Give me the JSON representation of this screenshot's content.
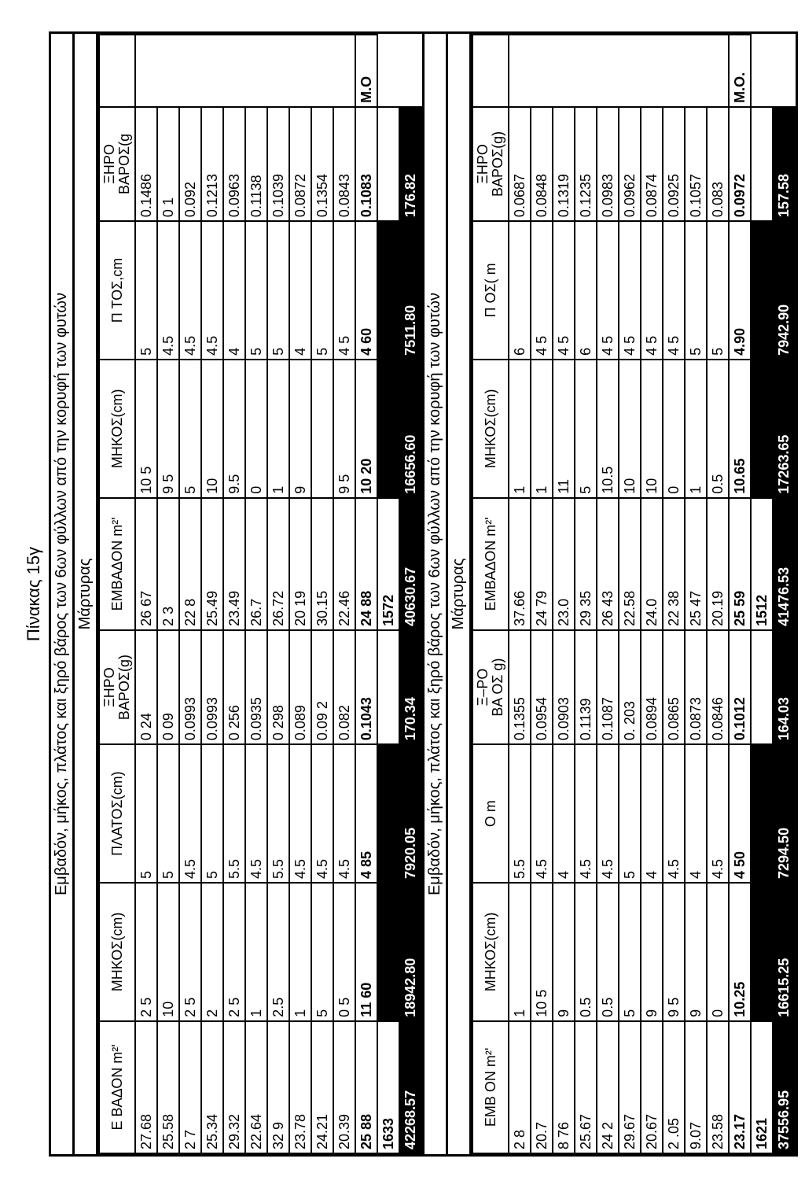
{
  "caption": "Πίνακας 15γ",
  "mainTitle": "Εμβαδόν, μήκος, πλάτος και ξηρό βάρος των 6ων φύλλων από την κορυφή των φυτών",
  "subTitle": "Μάρτυρας",
  "midTitle": "Εμβαδόν, μήκος, πλάτος και ξηρό βάρος των 6ων φύλλων από την κορυφή των φυτών",
  "midSubTitle": "Μάρτυρας",
  "noteLabel": "Μ.Ο",
  "noteLabel2": "Μ.Ο.",
  "headers1": {
    "c1": "Ε ΒΑΔΟΝ m²'",
    "c2": "ΜΗΚΟΣ(cm)",
    "c3": "ΠΛΑΤΟΣ(cm)",
    "c4": "ΞΗΡΟ\nΒΑΡΟΣ(g)",
    "c5": "ΕΜΒΑΔΟΝ m²'",
    "c6": "ΜΗΚΟΣ(cm)",
    "c7": "Π  ΤΟΣ,cm",
    "c8": "ΞΗΡΟ\nΒΑΡΟΣ(g"
  },
  "headers2": {
    "c1": "ΕΜΒ  ΟΝ m²'",
    "c2": "ΜΗΚΟΣ(cm)",
    "c3": "Ο  m",
    "c4": "Ξ–ΡΟ\nΒΑ ΟΣ g)",
    "c5": "ΕΜΒΑΔΟΝ m²'",
    "c6": "ΜΗΚΟΣ(cm)",
    "c7": "Π  ΟΣ( m",
    "c8": "ΞΗΡΟ\nΒΑΡΟΣ(g)"
  },
  "block1": {
    "rows": [
      [
        "27.68",
        "2 5",
        "5",
        "0 24",
        "26 67",
        "10 5",
        "5",
        "0.1486",
        ""
      ],
      [
        "25.58",
        "10",
        "5",
        "0 09",
        "2  3",
        "9 5",
        "4.5",
        "0 1",
        ""
      ],
      [
        "2  7",
        "2 5",
        "4.5",
        "0.0993",
        "22 8",
        "5",
        "4.5",
        "0.092",
        ""
      ],
      [
        "25.34",
        "2",
        "5",
        "0.0993",
        "25.49",
        "10",
        "4.5",
        "0.1213",
        ""
      ],
      [
        "29.32",
        "2 5",
        "5.5",
        "0 256",
        "23.49",
        "9.5",
        "4",
        "0.0963",
        ""
      ],
      [
        "22.64",
        "1",
        "4.5",
        "0.0935",
        "26.7",
        "0",
        "5",
        "0.1138",
        ""
      ],
      [
        "32  9",
        "2.5",
        "5.5",
        "0 298",
        "26.72",
        "1",
        "5",
        "0.1039",
        ""
      ],
      [
        "23.78",
        "1",
        "4.5",
        "0.089",
        "20 19",
        "9",
        "4",
        "0.0872",
        ""
      ],
      [
        "24.21",
        "5",
        "4.5",
        "0.09 2",
        "30.15",
        "",
        "5",
        "0.1354",
        ""
      ],
      [
        "20.39",
        "0 5",
        "4.5",
        "0.082",
        "22.46",
        "9 5",
        "4 5",
        "0.0843",
        ""
      ]
    ],
    "avg": [
      "25 88",
      "11 60",
      "4 85",
      "0.1043",
      "24 88",
      "10 20",
      "4 60",
      "0.1083",
      "Μ.Ο"
    ],
    "sum": [
      "1633",
      "",
      "",
      "",
      "1572",
      "",
      "",
      "",
      ""
    ],
    "total": [
      "42268.57",
      "18942.80",
      "7920.05",
      "170.34",
      "40630.67",
      "16656.60",
      "7511.80",
      "176.82",
      ""
    ],
    "avgNote": "Μ.Ο"
  },
  "block2": {
    "rows": [
      [
        "2  8",
        "1",
        "5.5",
        "0.1355",
        "37.66",
        "1",
        "6",
        "0.0687",
        ""
      ],
      [
        "20.7",
        "10 5",
        "4.5",
        "0.0954",
        "24 79",
        "1",
        "4 5",
        "0.0848",
        ""
      ],
      [
        "8 76",
        "9",
        "4",
        "0.0903",
        "23.0",
        "11",
        "4 5",
        "0.1319",
        ""
      ],
      [
        "25.67",
        "0.5",
        "4.5",
        "0.1139",
        "29 35",
        "5",
        "6",
        "0.1235",
        ""
      ],
      [
        "24  2",
        "0.5",
        "4.5",
        "0.1087",
        "26 43",
        "10.5",
        "4 5",
        "0.0983",
        ""
      ],
      [
        "29.67",
        "5",
        "5",
        "0. 203",
        "22.58",
        "10",
        "4 5",
        "0.0962",
        ""
      ],
      [
        "20.67",
        "9",
        "4",
        "0.0894",
        "24.0",
        "10",
        "4 5",
        "0.0874",
        ""
      ],
      [
        "2 .05",
        "9 5",
        "4.5",
        "0.0865",
        "22 38",
        "0",
        "4 5",
        "0.0925",
        ""
      ],
      [
        "9.07",
        "9",
        "4",
        "0.0873",
        "25 47",
        "1",
        "5",
        "0.1057",
        ""
      ],
      [
        "23.58",
        "0",
        "4.5",
        "0.0846",
        "20.19",
        "0.5",
        "5",
        "0.083",
        ""
      ]
    ],
    "avg": [
      "23.17",
      "10.25",
      "4 50",
      "0.1012",
      "25 59",
      "10.65",
      "4.90",
      "0.0972",
      "Μ.Ο."
    ],
    "sum": [
      "1621",
      "",
      "",
      "",
      "1512",
      "",
      "",
      "",
      ""
    ],
    "total": [
      "37556.95",
      "16615.25",
      "7294.50",
      "164.03",
      "41476.53",
      "17263.65",
      "7942.90",
      "157.58",
      ""
    ]
  }
}
